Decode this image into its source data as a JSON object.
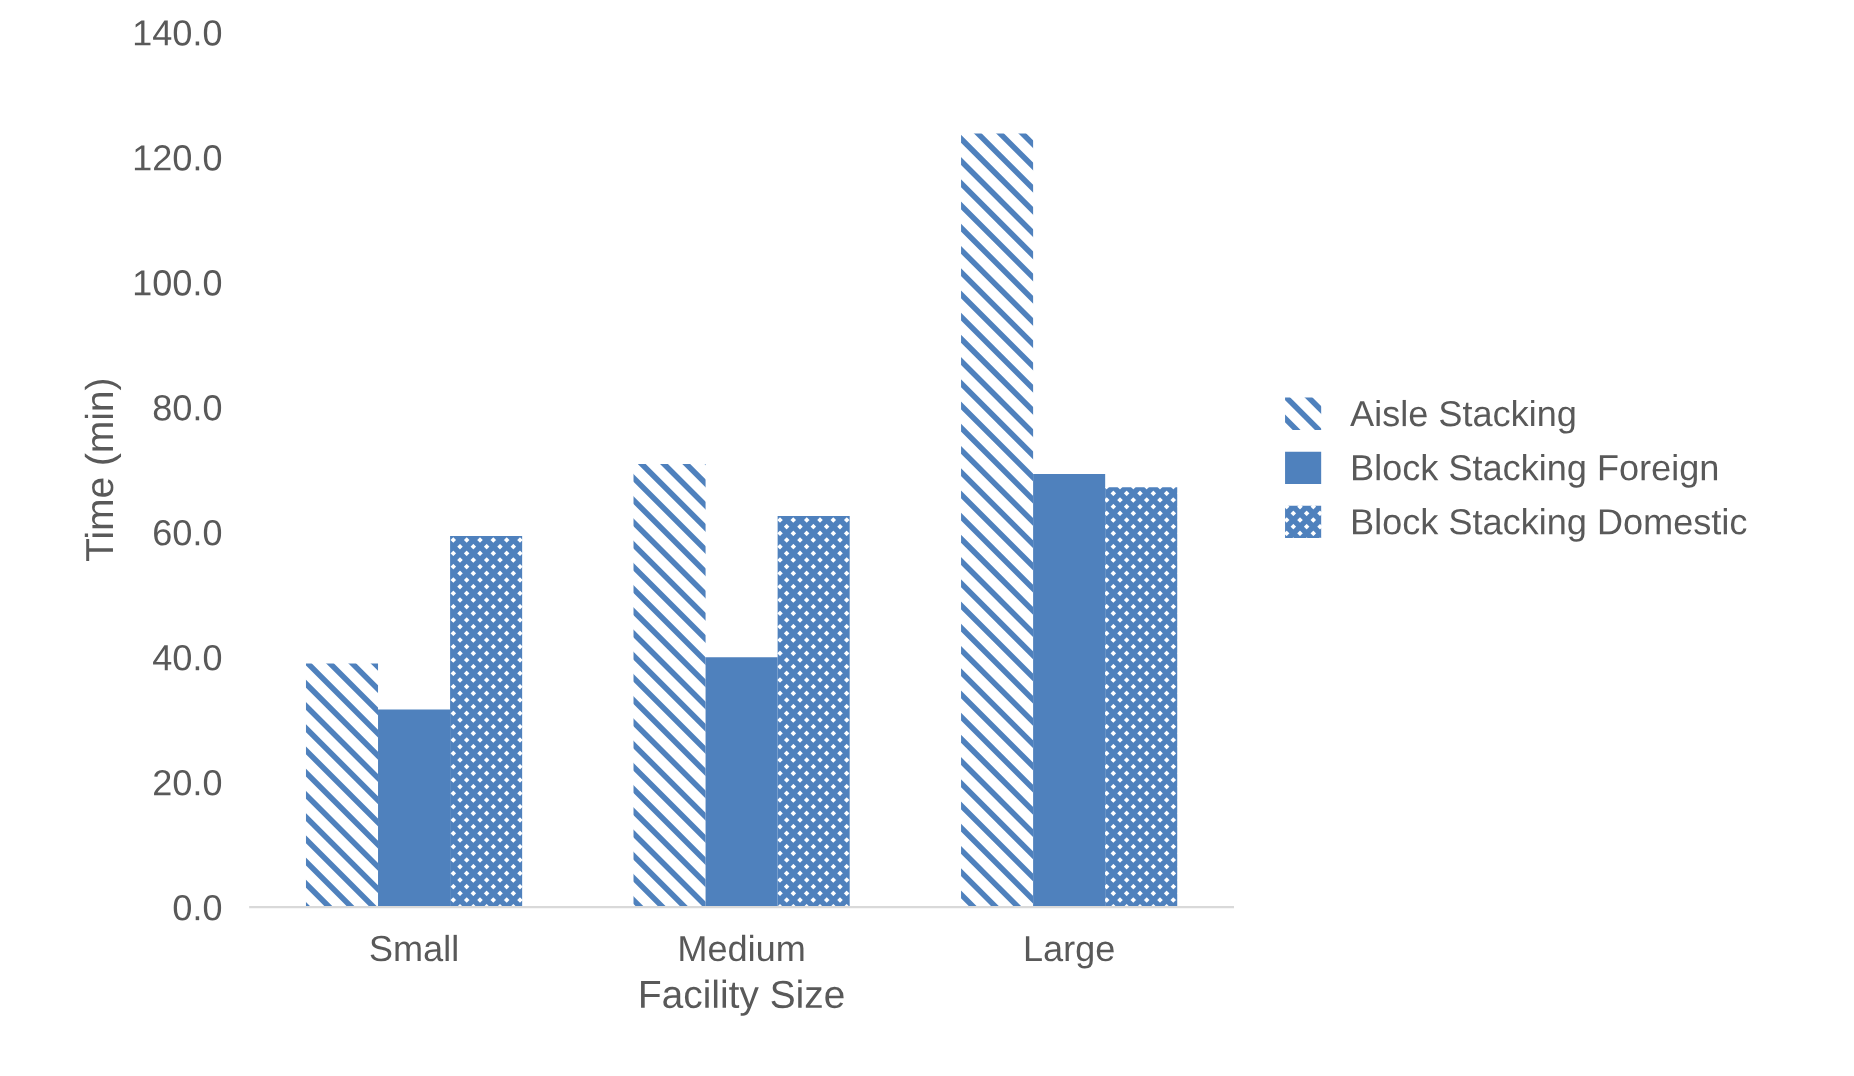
{
  "chart_data": {
    "type": "bar",
    "xlabel": "Facility Size",
    "ylabel": "Time (min)",
    "categories": [
      "Small",
      "Medium",
      "Large"
    ],
    "series": [
      {
        "name": "Aisle Stacking",
        "color": "#4f81bd",
        "values": [
          39.0,
          70.9,
          123.8
        ]
      },
      {
        "name": "Block Stacking Foreign",
        "color": "#4f81bd",
        "values": [
          31.6,
          40.0,
          69.3
        ]
      },
      {
        "name": "Block Stacking Domestic",
        "color": "#4f81bd",
        "values": [
          59.4,
          62.6,
          67.2
        ]
      }
    ],
    "ylim": [
      0,
      140
    ],
    "yticks": [
      {
        "value": 0,
        "label": "0.0"
      },
      {
        "value": 20,
        "label": "20.0"
      },
      {
        "value": 40,
        "label": "40.0"
      },
      {
        "value": 60,
        "label": "60.0"
      },
      {
        "value": 80,
        "label": "80.0"
      },
      {
        "value": 100,
        "label": "100.0"
      },
      {
        "value": 120,
        "label": "120.0"
      },
      {
        "value": 140,
        "label": "140.0"
      }
    ],
    "grid": false,
    "legend": "right"
  }
}
